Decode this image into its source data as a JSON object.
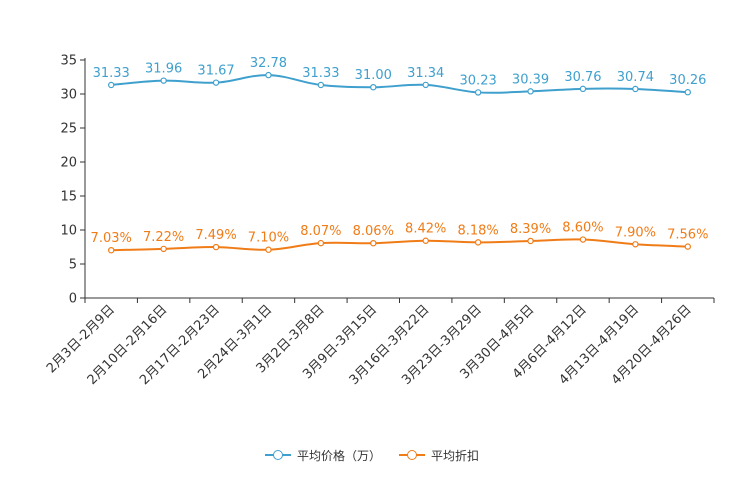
{
  "chart_data": {
    "type": "line",
    "categories": [
      "2月3日-2月9日",
      "2月10日-2月16日",
      "2月17日-2月23日",
      "2月24日-3月1日",
      "3月2日-3月8日",
      "3月9日-3月15日",
      "3月16日-3月22日",
      "3月23日-3月29日",
      "3月30日-4月5日",
      "4月6日-4月12日",
      "4月13日-4月19日",
      "4月20日-4月26日"
    ],
    "ylim": [
      0,
      35
    ],
    "yticks": [
      0,
      5,
      10,
      15,
      20,
      25,
      30,
      35
    ],
    "series": [
      {
        "name": "平均价格（万）",
        "color": "#3fa0ce",
        "values": [
          31.33,
          31.96,
          31.67,
          32.78,
          31.33,
          31.0,
          31.34,
          30.23,
          30.39,
          30.76,
          30.74,
          30.26
        ],
        "labels": [
          "31.33",
          "31.96",
          "31.67",
          "32.78",
          "31.33",
          "31.00",
          "31.34",
          "30.23",
          "30.39",
          "30.76",
          "30.74",
          "30.26"
        ]
      },
      {
        "name": "平均折扣",
        "color": "#f07c18",
        "values": [
          7.03,
          7.22,
          7.49,
          7.1,
          8.07,
          8.06,
          8.42,
          8.18,
          8.39,
          8.6,
          7.9,
          7.56
        ],
        "labels": [
          "7.03%",
          "7.22%",
          "7.49%",
          "7.10%",
          "8.07%",
          "8.06%",
          "8.42%",
          "8.18%",
          "8.39%",
          "8.60%",
          "7.90%",
          "7.56%"
        ]
      }
    ],
    "legend": {
      "placement": "bottom-center"
    }
  }
}
